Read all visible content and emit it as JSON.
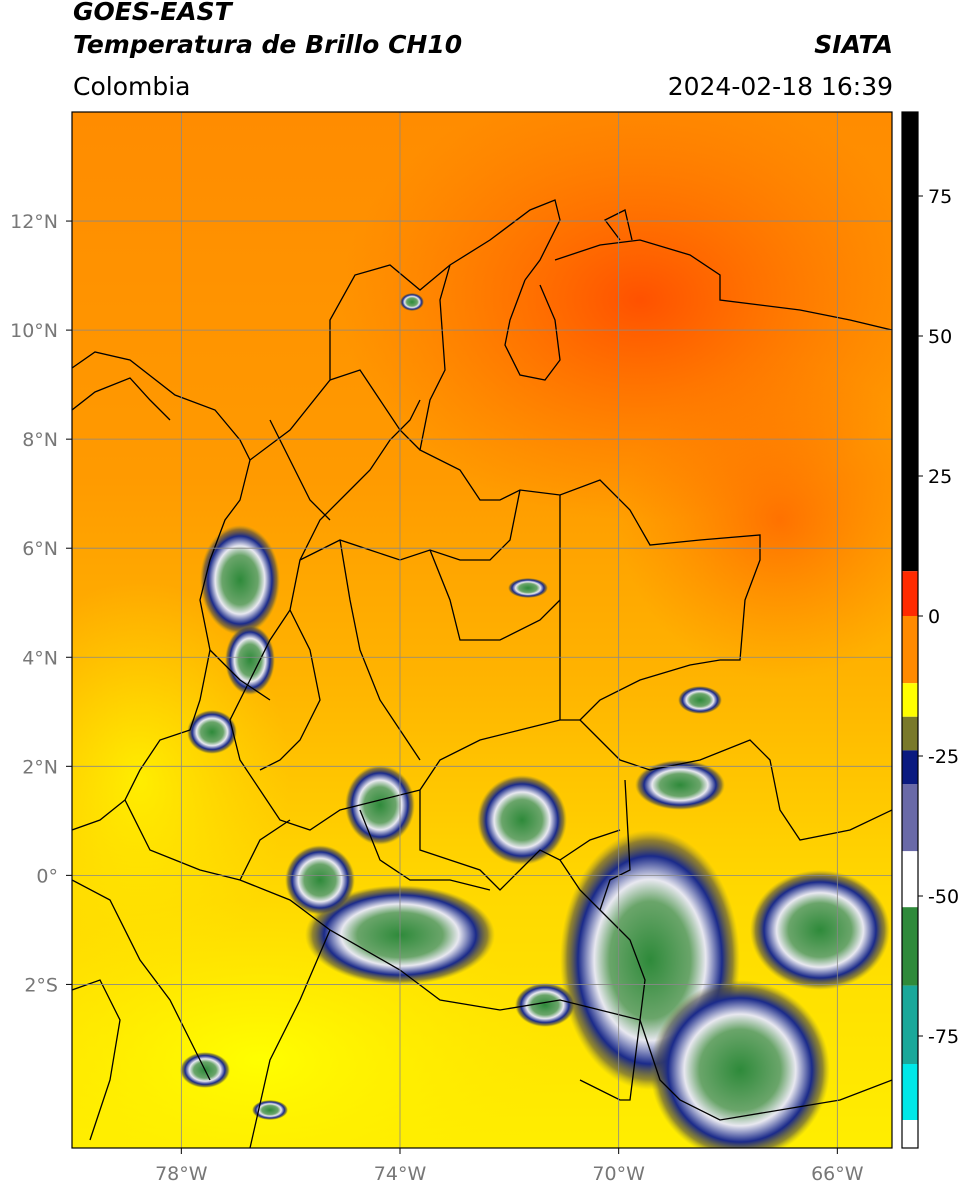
{
  "header": {
    "title_line1": "GOES-EAST",
    "title_line2": "Temperatura de Brillo CH10",
    "agency": "SIATA",
    "region": "Colombia",
    "datetime": "2024-02-18 16:39"
  },
  "map": {
    "lon_range": [
      -80,
      -65
    ],
    "lat_range": [
      -5,
      14
    ],
    "lon_ticks": [
      {
        "value": -78,
        "label": "78°W"
      },
      {
        "value": -74,
        "label": "74°W"
      },
      {
        "value": -70,
        "label": "70°W"
      },
      {
        "value": -66,
        "label": "66°W"
      }
    ],
    "lat_ticks": [
      {
        "value": 12,
        "label": "12°N"
      },
      {
        "value": 10,
        "label": "10°N"
      },
      {
        "value": 8,
        "label": "8°N"
      },
      {
        "value": 6,
        "label": "6°N"
      },
      {
        "value": 4,
        "label": "4°N"
      },
      {
        "value": 2,
        "label": "2°N"
      },
      {
        "value": 0,
        "label": "0°"
      },
      {
        "value": -2,
        "label": "2°S"
      }
    ],
    "gridlines": true
  },
  "colorbar": {
    "range": [
      -95,
      90
    ],
    "ticks": [
      {
        "value": 75,
        "label": "75"
      },
      {
        "value": 50,
        "label": "50"
      },
      {
        "value": 25,
        "label": "25"
      },
      {
        "value": 0,
        "label": "0"
      },
      {
        "value": -25,
        "label": "-25"
      },
      {
        "value": -50,
        "label": "-50"
      },
      {
        "value": -75,
        "label": "-75"
      }
    ],
    "colors": {
      "black": "#000000",
      "red": "#ff2a00",
      "orange": "#ff8a00",
      "yellow": "#ffff00",
      "olive": "#7a7a2a",
      "navy": "#0a1a80",
      "white": "#ffffff",
      "green": "#2f8a3a",
      "teal": "#1aa89a",
      "cyan": "#00e8e8"
    }
  }
}
